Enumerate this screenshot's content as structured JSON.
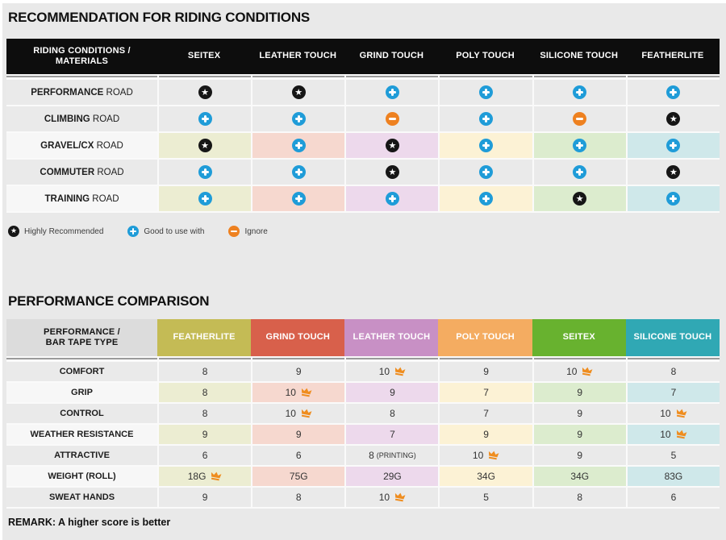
{
  "palette": {
    "page_bg": "#e9e9e9",
    "row_gray": "#eaeaea",
    "row_light": "#f7f7f7",
    "header_black": "#0d0d0d",
    "corner_gray": "#dcdcdc",
    "divider_gray": "#9a9a9a",
    "blue_plus": "#1f9cd8",
    "orange_minus": "#ee8120",
    "star_black": "#161616",
    "crown_orange": "#ef8d1f",
    "column_pale": [
      "#ecedd2",
      "#f6d8cf",
      "#edd9ec",
      "#fcf2d5",
      "#dcecce",
      "#cfe8ea"
    ]
  },
  "chart_data": [
    {
      "type": "table",
      "title": "RECOMMENDATION FOR RIDING CONDITIONS",
      "corner_header": [
        "RIDING CONDITIONS /",
        "MATERIALS"
      ],
      "columns": [
        "SEITEX",
        "LEATHER TOUCH",
        "GRIND TOUCH",
        "POLY TOUCH",
        "SILICONE TOUCH",
        "FEATHERLITE"
      ],
      "rows": [
        {
          "label": "PERFORMANCE ROAD",
          "label_bold": "PERFORMANCE",
          "label_rest": "ROAD",
          "striped": false,
          "values": [
            "highly_recommended",
            "highly_recommended",
            "good_to_use_with",
            "good_to_use_with",
            "good_to_use_with",
            "good_to_use_with"
          ]
        },
        {
          "label": "CLIMBING ROAD",
          "label_bold": "CLIMBING",
          "label_rest": "ROAD",
          "striped": false,
          "values": [
            "good_to_use_with",
            "good_to_use_with",
            "ignore",
            "good_to_use_with",
            "ignore",
            "highly_recommended"
          ]
        },
        {
          "label": "GRAVEL/CX ROAD",
          "label_bold": "GRAVEL/CX",
          "label_rest": "ROAD",
          "striped": true,
          "values": [
            "highly_recommended",
            "good_to_use_with",
            "highly_recommended",
            "good_to_use_with",
            "good_to_use_with",
            "good_to_use_with"
          ]
        },
        {
          "label": "COMMUTER ROAD",
          "label_bold": "COMMUTER",
          "label_rest": "ROAD",
          "striped": false,
          "values": [
            "good_to_use_with",
            "good_to_use_with",
            "highly_recommended",
            "good_to_use_with",
            "good_to_use_with",
            "highly_recommended"
          ]
        },
        {
          "label": "TRAINING ROAD",
          "label_bold": "TRAINING",
          "label_rest": "ROAD",
          "striped": true,
          "values": [
            "good_to_use_with",
            "good_to_use_with",
            "good_to_use_with",
            "good_to_use_with",
            "highly_recommended",
            "good_to_use_with"
          ]
        }
      ],
      "legend": [
        {
          "symbol": "star",
          "label": "Highly Recommended"
        },
        {
          "symbol": "plus",
          "label": "Good to use with"
        },
        {
          "symbol": "minus",
          "label": "Ignore"
        }
      ]
    },
    {
      "type": "table",
      "title": "PERFORMANCE COMPARISON",
      "corner_header": [
        "PERFORMANCE /",
        "BAR TAPE TYPE"
      ],
      "columns": [
        {
          "label": "FEATHERLITE",
          "color": "#c4bb55"
        },
        {
          "label": "GRIND TOUCH",
          "color": "#d8604b"
        },
        {
          "label": "LEATHER TOUCH",
          "color": "#c890c5"
        },
        {
          "label": "POLY TOUCH",
          "color": "#f4ac61"
        },
        {
          "label": "SEITEX",
          "color": "#68b22f"
        },
        {
          "label": "SILICONE TOUCH",
          "color": "#30a8b4"
        }
      ],
      "rows": [
        {
          "label": "COMFORT",
          "striped": false,
          "values": [
            {
              "v": "8"
            },
            {
              "v": "9"
            },
            {
              "v": "10",
              "best": true
            },
            {
              "v": "9"
            },
            {
              "v": "10",
              "best": true
            },
            {
              "v": "8"
            }
          ]
        },
        {
          "label": "GRIP",
          "striped": true,
          "values": [
            {
              "v": "8"
            },
            {
              "v": "10",
              "best": true
            },
            {
              "v": "9"
            },
            {
              "v": "7"
            },
            {
              "v": "9"
            },
            {
              "v": "7"
            }
          ]
        },
        {
          "label": "CONTROL",
          "striped": false,
          "values": [
            {
              "v": "8"
            },
            {
              "v": "10",
              "best": true
            },
            {
              "v": "8"
            },
            {
              "v": "7"
            },
            {
              "v": "9"
            },
            {
              "v": "10",
              "best": true
            }
          ]
        },
        {
          "label": "WEATHER RESISTANCE",
          "striped": true,
          "values": [
            {
              "v": "9"
            },
            {
              "v": "9"
            },
            {
              "v": "7"
            },
            {
              "v": "9"
            },
            {
              "v": "9"
            },
            {
              "v": "10",
              "best": true
            }
          ]
        },
        {
          "label": "ATTRACTIVE",
          "striped": false,
          "values": [
            {
              "v": "6"
            },
            {
              "v": "6"
            },
            {
              "v": "8",
              "note": "(PRINTING)"
            },
            {
              "v": "10",
              "best": true
            },
            {
              "v": "9"
            },
            {
              "v": "5"
            }
          ]
        },
        {
          "label": "WEIGHT (ROLL)",
          "striped": true,
          "values": [
            {
              "v": "18G",
              "best": true
            },
            {
              "v": "75G"
            },
            {
              "v": "29G"
            },
            {
              "v": "34G"
            },
            {
              "v": "34G"
            },
            {
              "v": "83G"
            }
          ]
        },
        {
          "label": "SWEAT HANDS",
          "striped": false,
          "values": [
            {
              "v": "9"
            },
            {
              "v": "8"
            },
            {
              "v": "10",
              "best": true
            },
            {
              "v": "5"
            },
            {
              "v": "8"
            },
            {
              "v": "6"
            }
          ]
        }
      ],
      "remark": "REMARK: A higher score is better"
    }
  ]
}
